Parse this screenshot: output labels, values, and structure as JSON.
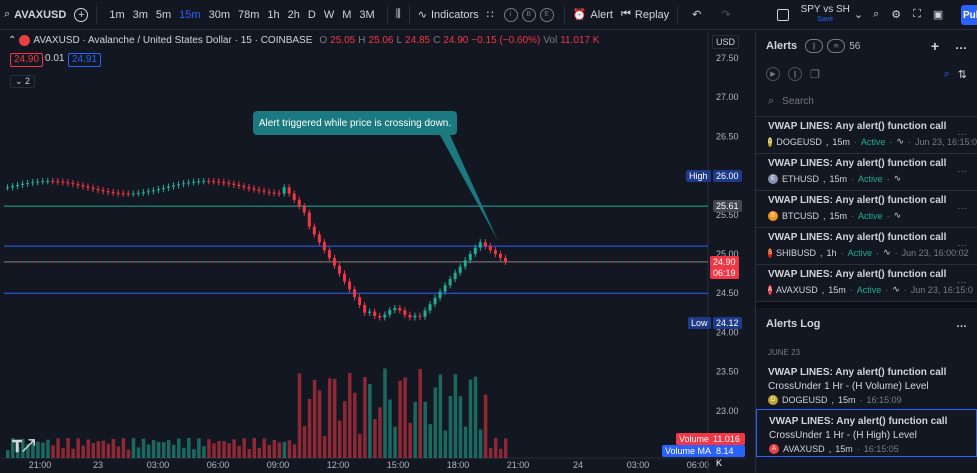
{
  "toolbar": {
    "symbol": "AVAXUSD",
    "timeframes": [
      "1m",
      "3m",
      "5m",
      "15m",
      "30m",
      "78m",
      "1h",
      "2h",
      "D",
      "W",
      "M",
      "3M"
    ],
    "active_timeframe": "15m",
    "indicators_label": "Indicators",
    "circle_icons": [
      "i",
      "B",
      "E"
    ],
    "alert_label": "Alert",
    "replay_label": "Replay",
    "layout_name": "SPY vs SH",
    "layout_status": "Save",
    "publish_label": "Pub"
  },
  "chart": {
    "title": "AVAXUSD · Avalanche / United States Dollar · 15 · COINBASE",
    "ohlc": {
      "o_label": "O",
      "o": "25.05",
      "h_label": "H",
      "h": "25.06",
      "l_label": "L",
      "l": "24.85",
      "c_label": "C",
      "c": "24.90",
      "change": "−0.15 (−0.60%)",
      "vol_label": "Vol",
      "vol": "11.017 K"
    },
    "bid": "24.90",
    "spread": "0.01",
    "ask": "24.91",
    "indicator_count": "2",
    "currency": "USD",
    "callout": "Alert triggered while price is crossing down.",
    "price_axis": [
      "27.50",
      "27.00",
      "26.50",
      "26.00",
      "25.50",
      "25.00",
      "24.50",
      "24.00",
      "23.50",
      "23.00"
    ],
    "time_axis": [
      "21:00",
      "23",
      "03:00",
      "06:00",
      "09:00",
      "12:00",
      "15:00",
      "18:00",
      "21:00",
      "24",
      "03:00",
      "06:00"
    ],
    "tags": {
      "high_label": "High",
      "high_value": "26.00",
      "level_value": "25.61",
      "last_price": "24.90",
      "countdown": "06:19",
      "low_label": "Low",
      "low_value": "24.12",
      "volume_label": "Volume",
      "volume_value": "11.016 K",
      "volume_ma_label": "Volume MA",
      "volume_ma_value": "8.14 K"
    },
    "colors": {
      "up": "#22ab94",
      "down": "#f23645",
      "accent": "#2962ff"
    }
  },
  "chart_data": {
    "type": "candlestick",
    "price_range": [
      23.0,
      27.5
    ],
    "levels": {
      "high": 26.0,
      "low": 24.12,
      "green_1": 25.61,
      "green_2": 24.9,
      "blue_1": 25.1,
      "blue_2": 24.5
    },
    "last_price": 24.9
  },
  "panel": {
    "title": "Alerts",
    "count": "56",
    "search_placeholder": "Search",
    "alerts": [
      {
        "title": "VWAP LINES: Any alert() function call",
        "symbol": "DOGEUSD",
        "tf": "15m",
        "status": "Active",
        "time": "Jun 23, 16:15:0",
        "coin_color": "#c2a633",
        "coin": "D"
      },
      {
        "title": "VWAP LINES: Any alert() function call",
        "symbol": "ETHUSD",
        "tf": "15m",
        "status": "Active",
        "time": "",
        "coin_color": "#8a92b2",
        "coin": "E"
      },
      {
        "title": "VWAP LINES: Any alert() function call",
        "symbol": "BTCUSD",
        "tf": "15m",
        "status": "Active",
        "time": "",
        "coin_color": "#f7931a",
        "coin": "B"
      },
      {
        "title": "VWAP LINES: Any alert() function call",
        "symbol": "SHIBUSD",
        "tf": "1h",
        "status": "Active",
        "time": "Jun 23, 16:00:02",
        "coin_color": "#e42d04",
        "coin": "S"
      },
      {
        "title": "VWAP LINES: Any alert() function call",
        "symbol": "AVAXUSD",
        "tf": "15m",
        "status": "Active",
        "time": "Jun 23, 16:15:0",
        "coin_color": "#e84142",
        "coin": "A"
      }
    ],
    "log_title": "Alerts Log",
    "log_date": "JUNE 23",
    "log": [
      {
        "l1": "VWAP LINES: Any alert() function call",
        "l2": "CrossUnder 1 Hr - (H Volume) Level",
        "symbol": "DOGEUSD",
        "tf": "15m",
        "time": "16:15:09",
        "coin_color": "#c2a633",
        "coin": "D"
      },
      {
        "l1": "VWAP LINES: Any alert() function call",
        "l2": "CrossUnder 1 Hr - (H High) Level",
        "symbol": "AVAXUSD",
        "tf": "15m",
        "time": "16:15:05",
        "coin_color": "#e84142",
        "coin": "A"
      }
    ]
  }
}
